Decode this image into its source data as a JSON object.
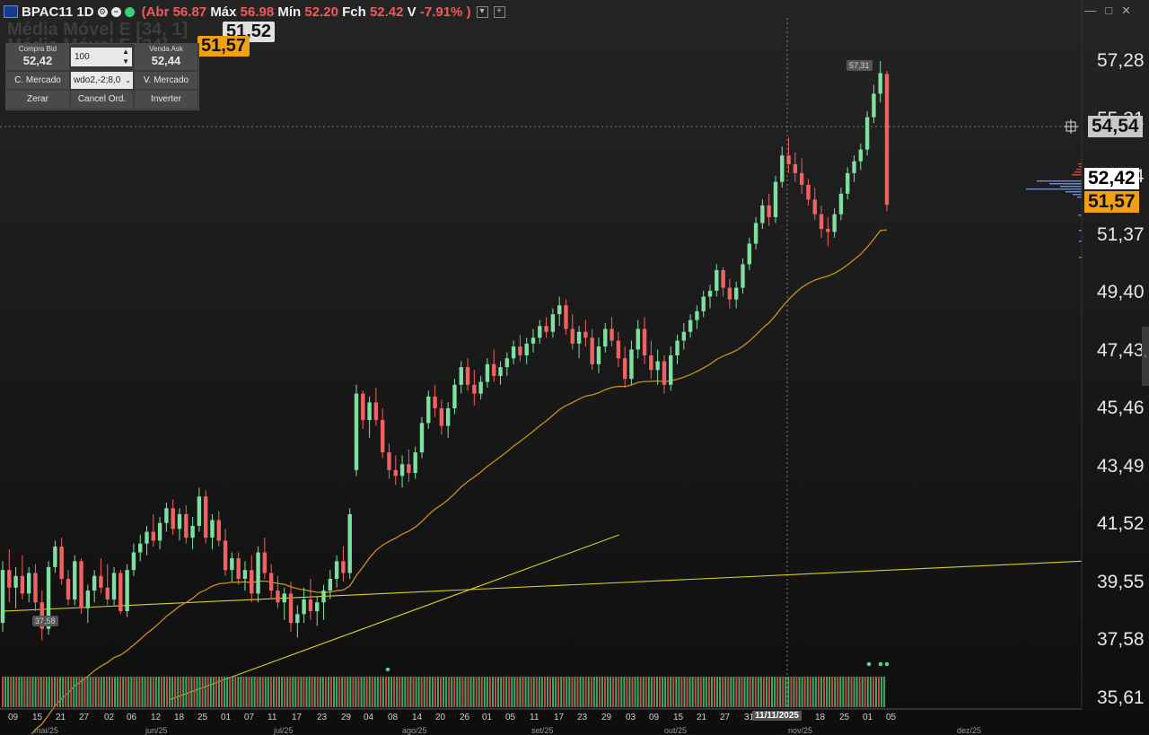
{
  "header": {
    "symbol": "BPAC11 1D",
    "abr_label": "(Abr",
    "abr_value": "56.87",
    "max_label": "Máx",
    "max_value": "56.98",
    "min_label": "Mín",
    "min_value": "52.20",
    "fch_label": "Fch",
    "fch_value": "52.42",
    "var_label": "V",
    "var_value": "-7.91%",
    "paren_close": ")"
  },
  "indicators": {
    "line1": "Média Móvel E [34, 1]",
    "line1_badge": "51,52",
    "line2": "Média Móvel E [34]",
    "line2_badge": "51,57"
  },
  "order_panel": {
    "bid_label": "Compra Bid",
    "bid_value": "52,42",
    "qty_value": "100",
    "ask_label": "Venda Ask",
    "ask_value": "52,44",
    "buy_market": "C. Mercado",
    "strategy_value": "wdo2,-2;8,0",
    "sell_market": "V. Mercado",
    "zero": "Zerar",
    "cancel_orders": "Cancel Ord.",
    "invert": "Inverter"
  },
  "price_axis": {
    "labels": [
      "57,28",
      "55,31",
      "53,34",
      "51,37",
      "49,40",
      "47,43",
      "45,46",
      "43,49",
      "41,52",
      "39,55",
      "37,58",
      "35,61"
    ],
    "crosshair_price": "54,54",
    "last_price": "52,42",
    "ma_price": "51,57"
  },
  "annotations": {
    "high_tag": "57,31",
    "low_tag": "37,58"
  },
  "date_axis": {
    "days": [
      "09",
      "15",
      "21",
      "27",
      "02",
      "06",
      "12",
      "18",
      "25",
      "01",
      "07",
      "11",
      "17",
      "23",
      "29",
      "04",
      "08",
      "14",
      "20",
      "26",
      "01",
      "05",
      "11",
      "17",
      "23",
      "29",
      "03",
      "09",
      "15",
      "21",
      "27",
      "31",
      "18",
      "25",
      "01",
      "05"
    ],
    "crosshair_date": "11/11/2025",
    "months": [
      "mai/25",
      "jun/25",
      "jul/25",
      "ago/25",
      "set/25",
      "out/25",
      "nov/25",
      "dez/25"
    ]
  },
  "colors": {
    "up": "#7ee0a0",
    "down": "#f06262",
    "ma": "#c8901a",
    "trend": "#d8d020",
    "background": "#141414"
  },
  "chart_data": {
    "type": "candlestick",
    "symbol": "BPAC11",
    "timeframe": "1D",
    "ylim": [
      35.61,
      57.28
    ],
    "grid": false,
    "ohlc": [
      [
        38.2,
        40.3,
        37.9,
        40.0
      ],
      [
        40.0,
        40.7,
        38.9,
        39.4
      ],
      [
        39.4,
        40.1,
        38.7,
        39.8
      ],
      [
        39.8,
        40.5,
        39.0,
        39.2
      ],
      [
        39.2,
        40.1,
        38.9,
        39.9
      ],
      [
        39.9,
        40.2,
        38.6,
        38.9
      ],
      [
        38.9,
        39.3,
        37.6,
        38.0
      ],
      [
        38.0,
        40.3,
        37.8,
        40.1
      ],
      [
        40.1,
        41.0,
        39.9,
        40.8
      ],
      [
        40.8,
        41.1,
        39.5,
        39.7
      ],
      [
        39.7,
        40.0,
        38.8,
        39.0
      ],
      [
        39.0,
        40.5,
        38.8,
        40.3
      ],
      [
        40.3,
        40.4,
        38.5,
        38.7
      ],
      [
        38.7,
        39.5,
        38.2,
        39.3
      ],
      [
        39.3,
        40.0,
        38.9,
        39.8
      ],
      [
        39.8,
        40.4,
        39.2,
        39.4
      ],
      [
        39.4,
        40.2,
        38.8,
        39.0
      ],
      [
        39.0,
        40.1,
        38.8,
        39.9
      ],
      [
        39.9,
        40.0,
        38.5,
        38.6
      ],
      [
        38.6,
        40.2,
        38.4,
        40.0
      ],
      [
        40.0,
        40.9,
        39.8,
        40.6
      ],
      [
        40.6,
        41.2,
        40.3,
        40.9
      ],
      [
        40.9,
        41.5,
        40.5,
        41.3
      ],
      [
        41.3,
        41.9,
        40.8,
        41.0
      ],
      [
        41.0,
        41.8,
        40.7,
        41.6
      ],
      [
        41.6,
        42.3,
        41.3,
        42.1
      ],
      [
        42.1,
        42.4,
        41.2,
        41.4
      ],
      [
        41.4,
        42.1,
        41.0,
        41.9
      ],
      [
        41.9,
        42.2,
        40.9,
        41.1
      ],
      [
        41.1,
        41.8,
        40.7,
        41.5
      ],
      [
        41.5,
        42.8,
        41.3,
        42.5
      ],
      [
        42.5,
        42.7,
        40.9,
        41.1
      ],
      [
        41.1,
        41.9,
        40.7,
        41.7
      ],
      [
        41.7,
        42.0,
        40.8,
        41.0
      ],
      [
        41.0,
        41.4,
        39.8,
        40.0
      ],
      [
        40.0,
        40.6,
        39.6,
        40.4
      ],
      [
        40.4,
        40.6,
        39.5,
        39.7
      ],
      [
        39.7,
        40.3,
        39.3,
        40.0
      ],
      [
        40.0,
        40.5,
        38.9,
        39.2
      ],
      [
        39.2,
        40.8,
        38.9,
        40.6
      ],
      [
        40.6,
        41.1,
        39.7,
        39.9
      ],
      [
        39.9,
        40.2,
        39.0,
        39.3
      ],
      [
        39.3,
        39.8,
        38.7,
        38.9
      ],
      [
        38.9,
        39.4,
        38.3,
        39.2
      ],
      [
        39.2,
        39.6,
        37.9,
        38.2
      ],
      [
        38.2,
        38.8,
        37.7,
        38.5
      ],
      [
        38.5,
        39.4,
        38.2,
        39.0
      ],
      [
        39.0,
        39.7,
        38.3,
        38.6
      ],
      [
        38.6,
        39.1,
        38.1,
        38.9
      ],
      [
        38.9,
        39.5,
        38.3,
        39.3
      ],
      [
        39.3,
        40.0,
        39.0,
        39.7
      ],
      [
        39.7,
        40.5,
        39.4,
        40.3
      ],
      [
        40.3,
        40.8,
        39.6,
        39.9
      ],
      [
        39.9,
        42.1,
        39.7,
        41.9
      ],
      [
        43.4,
        46.3,
        43.2,
        46.0
      ],
      [
        46.0,
        46.1,
        44.8,
        45.1
      ],
      [
        45.1,
        45.9,
        44.5,
        45.7
      ],
      [
        45.7,
        46.2,
        44.9,
        45.1
      ],
      [
        45.1,
        45.5,
        43.8,
        44.0
      ],
      [
        44.0,
        44.3,
        43.1,
        43.4
      ],
      [
        43.4,
        43.9,
        42.9,
        43.2
      ],
      [
        43.2,
        43.9,
        42.8,
        43.6
      ],
      [
        43.6,
        44.1,
        43.0,
        43.3
      ],
      [
        43.3,
        44.2,
        43.1,
        44.0
      ],
      [
        44.0,
        45.2,
        43.8,
        45.0
      ],
      [
        45.0,
        46.1,
        44.8,
        45.9
      ],
      [
        45.9,
        46.3,
        45.2,
        45.5
      ],
      [
        45.5,
        45.8,
        44.6,
        44.9
      ],
      [
        44.9,
        45.7,
        44.5,
        45.5
      ],
      [
        45.5,
        46.5,
        45.3,
        46.3
      ],
      [
        46.3,
        47.1,
        46.0,
        46.9
      ],
      [
        46.9,
        47.2,
        46.1,
        46.3
      ],
      [
        46.3,
        46.8,
        45.6,
        46.0
      ],
      [
        46.0,
        46.6,
        45.8,
        46.4
      ],
      [
        46.4,
        47.2,
        46.2,
        47.0
      ],
      [
        47.0,
        47.5,
        46.4,
        46.6
      ],
      [
        46.6,
        47.1,
        46.3,
        46.9
      ],
      [
        46.9,
        47.4,
        46.6,
        47.2
      ],
      [
        47.2,
        47.8,
        47.0,
        47.6
      ],
      [
        47.6,
        48.0,
        47.1,
        47.3
      ],
      [
        47.3,
        47.9,
        47.0,
        47.7
      ],
      [
        47.7,
        48.2,
        47.4,
        47.9
      ],
      [
        47.9,
        48.5,
        47.7,
        48.3
      ],
      [
        48.3,
        48.6,
        47.9,
        48.1
      ],
      [
        48.1,
        48.9,
        47.9,
        48.7
      ],
      [
        48.7,
        49.3,
        48.3,
        49.0
      ],
      [
        49.0,
        49.2,
        48.0,
        48.2
      ],
      [
        48.2,
        48.7,
        47.5,
        47.7
      ],
      [
        47.7,
        48.3,
        47.2,
        48.1
      ],
      [
        48.1,
        48.5,
        47.6,
        47.9
      ],
      [
        47.9,
        48.2,
        46.8,
        47.0
      ],
      [
        47.0,
        47.9,
        46.7,
        47.6
      ],
      [
        47.6,
        48.4,
        47.4,
        48.2
      ],
      [
        48.2,
        48.6,
        47.6,
        47.8
      ],
      [
        47.8,
        48.1,
        46.9,
        47.2
      ],
      [
        47.2,
        47.6,
        46.2,
        46.5
      ],
      [
        46.5,
        47.8,
        46.3,
        47.5
      ],
      [
        47.5,
        48.5,
        47.2,
        48.2
      ],
      [
        48.2,
        48.6,
        47.0,
        47.3
      ],
      [
        47.3,
        47.8,
        46.5,
        46.8
      ],
      [
        46.8,
        47.5,
        46.3,
        47.1
      ],
      [
        47.1,
        47.3,
        46.0,
        46.3
      ],
      [
        46.3,
        47.6,
        46.1,
        47.3
      ],
      [
        47.3,
        48.0,
        47.0,
        47.8
      ],
      [
        47.8,
        48.4,
        47.5,
        48.1
      ],
      [
        48.1,
        48.7,
        47.9,
        48.5
      ],
      [
        48.5,
        49.0,
        48.2,
        48.8
      ],
      [
        48.8,
        49.5,
        48.6,
        49.3
      ],
      [
        49.3,
        49.7,
        48.9,
        49.5
      ],
      [
        49.5,
        50.4,
        49.3,
        50.2
      ],
      [
        50.2,
        50.3,
        49.3,
        49.6
      ],
      [
        49.6,
        49.9,
        48.9,
        49.2
      ],
      [
        49.2,
        49.8,
        48.9,
        49.6
      ],
      [
        49.6,
        50.6,
        49.4,
        50.4
      ],
      [
        50.4,
        51.3,
        50.2,
        51.1
      ],
      [
        51.1,
        52.0,
        50.9,
        51.8
      ],
      [
        51.8,
        52.6,
        51.6,
        52.4
      ],
      [
        52.4,
        52.8,
        51.7,
        52.0
      ],
      [
        52.0,
        53.4,
        51.8,
        53.2
      ],
      [
        53.2,
        54.4,
        53.0,
        54.1
      ],
      [
        54.1,
        54.7,
        53.5,
        53.8
      ],
      [
        53.8,
        54.2,
        53.2,
        53.5
      ],
      [
        53.5,
        54.0,
        52.8,
        53.1
      ],
      [
        53.1,
        53.3,
        52.4,
        52.6
      ],
      [
        52.6,
        53.0,
        51.9,
        52.1
      ],
      [
        52.1,
        52.4,
        51.3,
        51.6
      ],
      [
        51.6,
        52.0,
        51.0,
        51.5
      ],
      [
        51.5,
        52.3,
        51.3,
        52.1
      ],
      [
        52.1,
        53.0,
        51.9,
        52.8
      ],
      [
        52.8,
        53.7,
        52.6,
        53.5
      ],
      [
        53.5,
        54.1,
        53.2,
        53.9
      ],
      [
        53.9,
        54.5,
        53.6,
        54.3
      ],
      [
        54.3,
        55.6,
        54.1,
        55.4
      ],
      [
        55.4,
        56.5,
        55.2,
        56.2
      ],
      [
        56.2,
        57.31,
        55.9,
        56.9
      ],
      [
        56.87,
        56.98,
        52.2,
        52.42
      ]
    ],
    "moving_average": {
      "name": "Média Móvel E [34]",
      "last_value": 51.57
    },
    "trendlines": [
      {
        "from": {
          "date": "09/05",
          "price": 38.6
        },
        "to": {
          "date": "05/12",
          "price": 40.3
        }
      },
      {
        "from": {
          "date": "18/06",
          "price": 35.6
        },
        "to": {
          "date": "29/09",
          "price": 41.2
        }
      }
    ],
    "volume": "bars shown"
  }
}
